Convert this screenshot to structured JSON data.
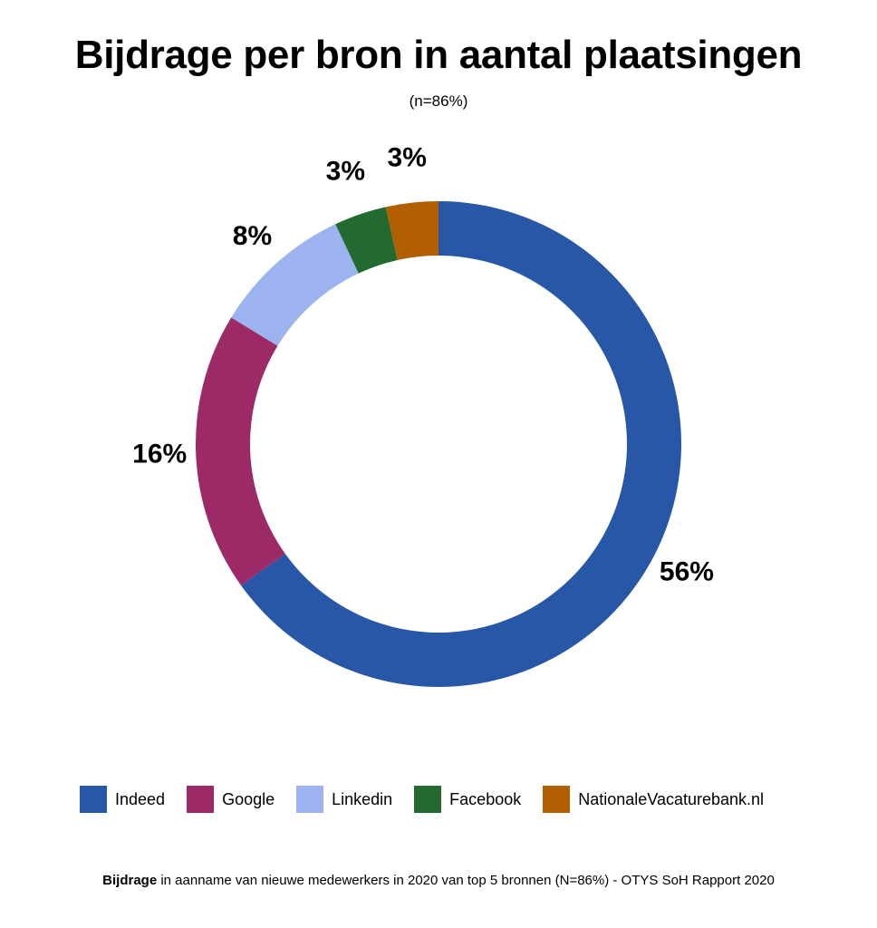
{
  "chart_data": {
    "type": "pie",
    "variant": "donut",
    "title": "Bijdrage per bron in aantal plaatsingen",
    "subtitle": "(n=86%)",
    "categories": [
      "Indeed",
      "Google",
      "Linkedin",
      "Facebook",
      "NationaleVacaturebank.nl"
    ],
    "values": [
      56,
      16,
      8,
      3,
      3
    ],
    "labels": [
      "56%",
      "16%",
      "8%",
      "3%",
      "3%"
    ],
    "colors": [
      "#2757a6",
      "#9b2a67",
      "#9db3ef",
      "#226a30",
      "#b15f00"
    ],
    "legend": "bottom"
  },
  "footer": {
    "bold_text": "Bijdrage",
    "text": " in aanname van nieuwe medewerkers in 2020 van top 5 bronnen (N=86%) - OTYS SoH Rapport 2020"
  }
}
